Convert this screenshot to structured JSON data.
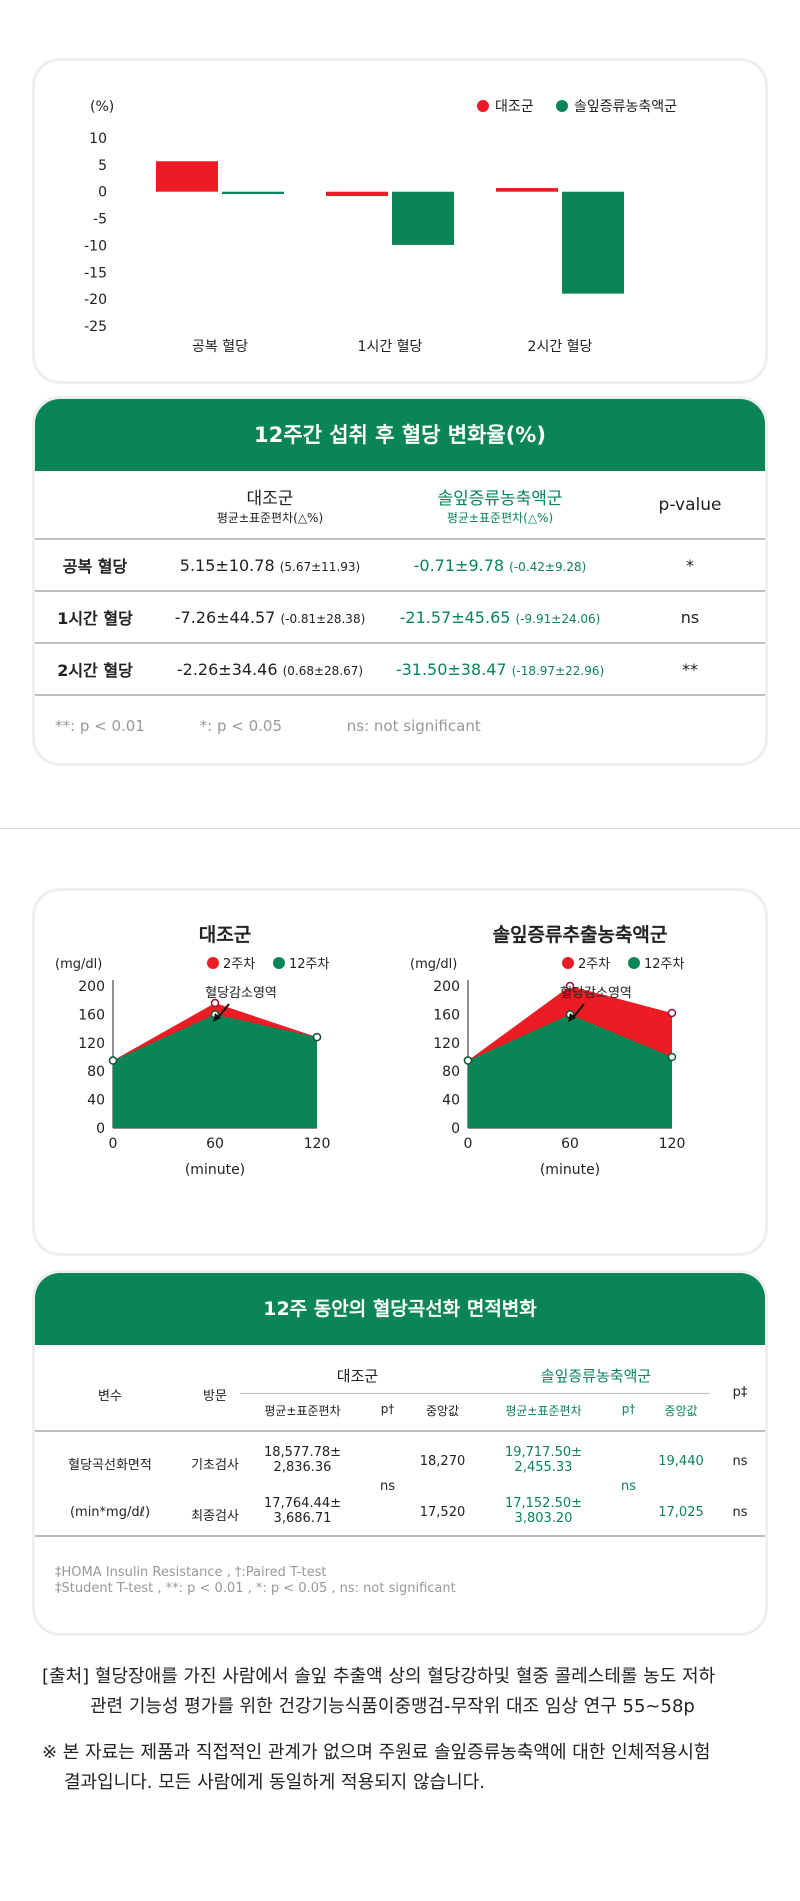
{
  "chart1": {
    "unit": "(%)",
    "legend": [
      "대조군",
      "솔잎증류농축액군"
    ],
    "colors": {
      "control": "#ec1c24",
      "treatment": "#0a8555"
    },
    "y_ticks": [
      "10",
      "5",
      "0",
      "-5",
      "-10",
      "-15",
      "-20",
      "-25"
    ],
    "categories": [
      "공복 혈당",
      "1시간 혈당",
      "2시간 혈당"
    ]
  },
  "chart_data": [
    {
      "type": "bar",
      "categories": [
        "공복 혈당",
        "1시간 혈당",
        "2시간 혈당"
      ],
      "series": [
        {
          "name": "대조군",
          "values": [
            5.67,
            -0.81,
            0.68
          ]
        },
        {
          "name": "솔잎증류농축액군",
          "values": [
            -0.42,
            -9.91,
            -18.97
          ]
        }
      ],
      "ylabel": "(%)",
      "ylim": [
        -25,
        10
      ]
    },
    {
      "type": "area",
      "title": "대조군",
      "x": [
        0,
        60,
        120
      ],
      "series": [
        {
          "name": "2주차",
          "values": [
            95,
            176,
            128
          ]
        },
        {
          "name": "12주차",
          "values": [
            95,
            160,
            128
          ]
        }
      ],
      "xlabel": "(minute)",
      "ylabel": "(mg/dl)",
      "ylim": [
        0,
        200
      ],
      "annotation": "혈당감소영역"
    },
    {
      "type": "area",
      "title": "솔잎증류추출농축액군",
      "x": [
        0,
        60,
        120
      ],
      "series": [
        {
          "name": "2주차",
          "values": [
            95,
            200,
            162
          ]
        },
        {
          "name": "12주차",
          "values": [
            95,
            160,
            100
          ]
        }
      ],
      "xlabel": "(minute)",
      "ylabel": "(mg/dl)",
      "ylim": [
        0,
        200
      ],
      "annotation": "혈당감소영역"
    }
  ],
  "table1": {
    "title": "12주간 섭취 후 혈당 변화율(%)",
    "col_control": "대조군",
    "col_control_sub": "평균±표준편차(△%)",
    "col_treat": "솔잎증류농축액군",
    "col_treat_sub": "평균±표준편차(△%)",
    "col_p": "p-value",
    "rows": [
      {
        "label": "공복 혈당",
        "control": "5.15±10.78",
        "control_sub": "(5.67±11.93)",
        "treat": "-0.71±9.78",
        "treat_sub": "(-0.42±9.28)",
        "p": "*"
      },
      {
        "label": "1시간 혈당",
        "control": "-7.26±44.57",
        "control_sub": "(-0.81±28.38)",
        "treat": "-21.57±45.65",
        "treat_sub": "(-9.91±24.06)",
        "p": "ns"
      },
      {
        "label": "2시간 혈당",
        "control": "-2.26±34.46",
        "control_sub": "(0.68±28.67)",
        "treat": "-31.50±38.47",
        "treat_sub": "(-18.97±22.96)",
        "p": "**"
      }
    ],
    "footnotes": [
      "**: p < 0.01",
      "*: p < 0.05",
      "ns: not significant"
    ]
  },
  "area_charts": {
    "ylabel": "(mg/dl)",
    "xlabel": "(minute)",
    "y_ticks": [
      "200",
      "160",
      "120",
      "80",
      "40",
      "0"
    ],
    "x_ticks": [
      "0",
      "60",
      "120"
    ],
    "legend": [
      "2주차",
      "12주차"
    ],
    "annotation": "혈당감소영역",
    "left_title": "대조군",
    "right_title": "솔잎증류추출농축액군"
  },
  "table2": {
    "title": "12주 동안의 혈당곡선화 면적변화",
    "h_var": "변수",
    "h_visit": "방문",
    "h_control": "대조군",
    "h_treat": "솔잎증류농축액군",
    "h_p": "p‡",
    "h_mean": "평균±표준편차",
    "h_pt": "p†",
    "h_median": "중앙값",
    "var_line1": "혈당곡선화면적",
    "var_line2": "(min*mg/dℓ)",
    "visit1": "기초검사",
    "visit2": "최종검사",
    "c_mean1a": "18,577.78±",
    "c_mean1b": "2,836.36",
    "c_mean2a": "17,764.44±",
    "c_mean2b": "3,686.71",
    "c_p": "ns",
    "c_med1": "18,270",
    "c_med2": "17,520",
    "t_mean1a": "19,717.50±",
    "t_mean1b": "2,455.33",
    "t_mean2a": "17,152.50±",
    "t_mean2b": "3,803.20",
    "t_p": "ns",
    "t_med1": "19,440",
    "t_med2": "17,025",
    "p1": "ns",
    "p2": "ns",
    "foot1": "‡HOMA Insulin Resistance ,  †:Paired T-test",
    "foot2": "‡Student T-test , **: p < 0.01 , *: p < 0.05 ,  ns: not significant"
  },
  "source": {
    "line1": "[출처] 혈당장애를 가진 사람에서 솔잎 추출액 상의 혈당강하및 혈중 콜레스테롤 농도 저하",
    "line2": "관련 기능성 평가를 위한 건강기능식품이중맹검-무작위 대조 임상 연구 55~58p"
  },
  "disclaimer": {
    "line1": "※ 본 자료는 제품과 직접적인 관계가 없으며 주원료 솔잎증류농축액에 대한 인체적용시험",
    "line2": "결과입니다. 모든 사람에게 동일하게 적용되지 않습니다."
  }
}
